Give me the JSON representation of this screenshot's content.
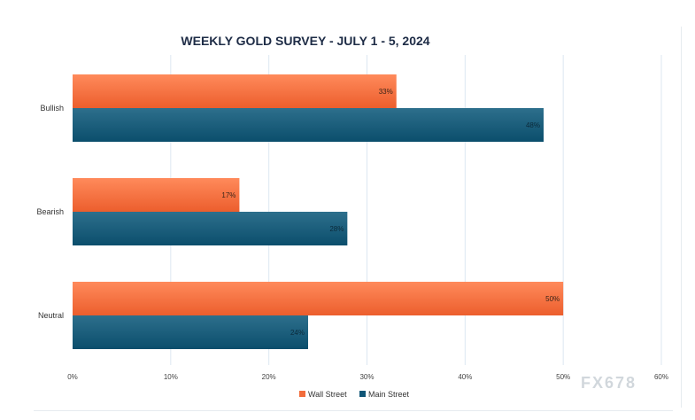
{
  "chart_data": {
    "type": "bar",
    "orientation": "horizontal",
    "title": "WEEKLY GOLD SURVEY - JULY 1 - 5, 2024",
    "categories": [
      "Bullish",
      "Bearish",
      "Neutral"
    ],
    "series": [
      {
        "name": "Wall Street",
        "color": "#f26c3b",
        "values": [
          33,
          17,
          50
        ],
        "labels": [
          "33%",
          "17%",
          "50%"
        ]
      },
      {
        "name": "Main Street",
        "color": "#0f5677",
        "values": [
          48,
          28,
          24
        ],
        "labels": [
          "48%",
          "28%",
          "24%"
        ]
      }
    ],
    "xlim": [
      0,
      60
    ],
    "xticks": [
      0,
      10,
      20,
      30,
      40,
      50,
      60
    ],
    "xtick_labels": [
      "0%",
      "10%",
      "20%",
      "30%",
      "40%",
      "50%",
      "60%"
    ],
    "grid": true,
    "legend_position": "bottom-center",
    "xlabel": "",
    "ylabel": ""
  },
  "watermark": {
    "text": "FX678",
    "color": "#b4bec6"
  }
}
